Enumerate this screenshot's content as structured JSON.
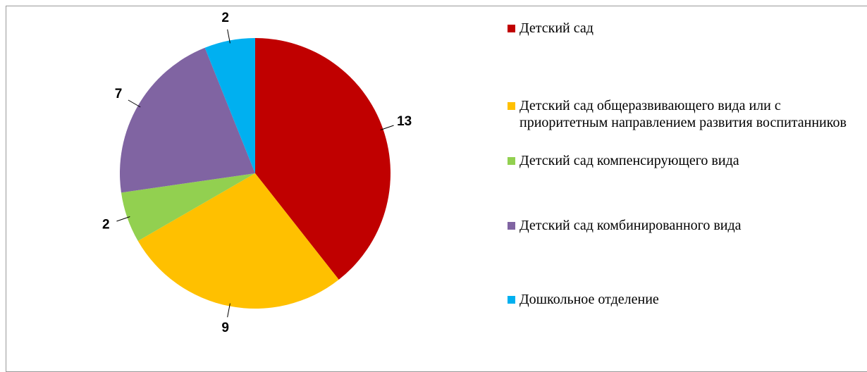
{
  "chart_data": {
    "type": "pie",
    "categories": [
      "Детский сад",
      "Детский сад общеразвивающего вида или с приоритетным направлением развития воспитанников",
      "Детский сад компенсирующего вида",
      "Детский сад комбинированного вида",
      "Дошкольное отделение"
    ],
    "values": [
      13,
      9,
      2,
      7,
      2
    ],
    "colors": [
      "#c00000",
      "#ffc000",
      "#92d050",
      "#8064a2",
      "#00b0f0"
    ],
    "legend": "right"
  }
}
